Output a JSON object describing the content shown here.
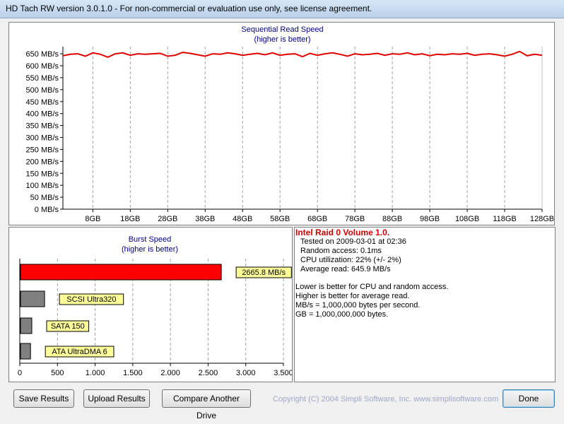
{
  "window": {
    "title": "HD Tach RW version 3.0.1.0  - For non-commercial or evaluation use only, see license agreement."
  },
  "seq_chart": {
    "title": "Sequential Read Speed",
    "subtitle": "(higher is better)",
    "y_labels": [
      "650 MB/s",
      "600 MB/s",
      "550 MB/s",
      "500 MB/s",
      "450 MB/s",
      "400 MB/s",
      "350 MB/s",
      "300 MB/s",
      "250 MB/s",
      "200 MB/s",
      "150 MB/s",
      "100 MB/s",
      "50 MB/s",
      "0 MB/s"
    ],
    "x_labels": [
      "8GB",
      "18GB",
      "28GB",
      "38GB",
      "48GB",
      "58GB",
      "68GB",
      "78GB",
      "88GB",
      "98GB",
      "108GB",
      "118GB",
      "128GB"
    ]
  },
  "burst_chart": {
    "title": "Burst Speed",
    "subtitle": "(higher is better)",
    "x_labels": [
      "0",
      "500",
      "1.000",
      "1.500",
      "2.000",
      "2.500",
      "3.000",
      "3.500"
    ]
  },
  "info": {
    "title": "Intel Raid 0 Volume 1.0.",
    "lines": [
      "Tested on 2009-03-01 at 02:36",
      "Random access: 0.1ms",
      "CPU utilization: 22% (+/- 2%)",
      "Average read: 645.9 MB/s"
    ],
    "notes": [
      "Lower is better for CPU and random access.",
      "Higher is better for average read.",
      "MB/s = 1,000,000 bytes per second.",
      "GB = 1,000,000,000 bytes."
    ]
  },
  "buttons": {
    "save": "Save Results",
    "upload": "Upload Results",
    "compare": "Compare Another Drive",
    "done": "Done"
  },
  "copyright": "Copyright (C) 2004 Simpli Software, Inc. www.simplisoftware.com",
  "colors": {
    "read_line": "#e00000",
    "burst_main": "#ff0000",
    "burst_ref": "#808080",
    "label_bg": "#ffff99"
  },
  "chart_data": [
    {
      "type": "line",
      "title": "Sequential Read Speed",
      "subtitle": "(higher is better)",
      "ylim": [
        0,
        680
      ],
      "xlim": [
        0,
        128
      ],
      "x": [
        0,
        2,
        4,
        6,
        8,
        10,
        12,
        14,
        16,
        18,
        20,
        22,
        24,
        26,
        28,
        30,
        32,
        34,
        36,
        38,
        40,
        42,
        44,
        46,
        48,
        50,
        52,
        54,
        56,
        58,
        60,
        62,
        64,
        66,
        68,
        70,
        72,
        74,
        76,
        78,
        80,
        82,
        84,
        86,
        88,
        90,
        92,
        94,
        96,
        98,
        100,
        102,
        104,
        106,
        108,
        110,
        112,
        114,
        116,
        118,
        120,
        122,
        124,
        126,
        128
      ],
      "series": [
        {
          "values": [
            642,
            648,
            650,
            640,
            654,
            648,
            636,
            650,
            654,
            644,
            650,
            648,
            650,
            652,
            640,
            644,
            656,
            652,
            646,
            640,
            650,
            648,
            654,
            650,
            644,
            648,
            652,
            646,
            654,
            644,
            648,
            650,
            638,
            652,
            644,
            650,
            654,
            648,
            640,
            650,
            646,
            648,
            652,
            644,
            650,
            648,
            654,
            646,
            650,
            642,
            648,
            646,
            650,
            648,
            652,
            644,
            648,
            650,
            646,
            640,
            648,
            660,
            642,
            648,
            644
          ]
        }
      ]
    },
    {
      "type": "bar",
      "title": "Burst Speed",
      "subtitle": "(higher is better)",
      "categories": [
        "Intel Raid 0 Volume 1.0.",
        "SCSI Ultra320",
        "SATA 150",
        "ATA UltraDMA 6"
      ],
      "labels": [
        "2665.8 MB/s",
        "SCSI Ultra320",
        "SATA 150",
        "ATA UltraDMA 6"
      ],
      "values": [
        2665.8,
        320,
        150,
        133
      ],
      "xlim": [
        0,
        3500
      ]
    }
  ]
}
